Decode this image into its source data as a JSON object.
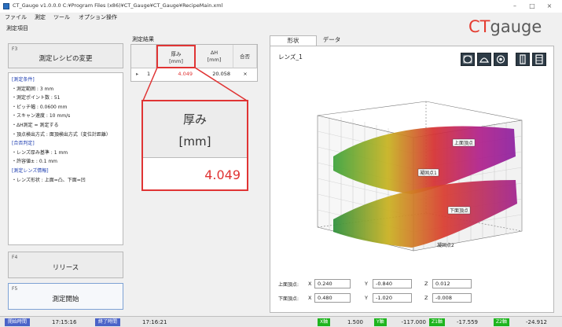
{
  "window": {
    "title": "CT_Gauge v1.0.0.0   C:¥Program Files (x86)¥CT_Gauge¥CT_Gauge¥RecipeMain.xml",
    "minimize": "–",
    "maximize": "□",
    "close": "×"
  },
  "menu": [
    "ファイル",
    "測定",
    "ツール",
    "オプション操作"
  ],
  "logo": {
    "ct": "CT",
    "gauge": "gauge"
  },
  "left": {
    "caption": "測定項目",
    "f3_key": "F3",
    "f3_label": "測定レシピの変更",
    "conditions": [
      {
        "text": "[測定条件]",
        "head": true
      },
      {
        "text": "・測定範囲 : 3 mm",
        "head": false
      },
      {
        "text": "・測定ポイント数 : 51",
        "head": false
      },
      {
        "text": "・ピッチ幅 : 0.0600 mm",
        "head": false
      },
      {
        "text": "・スキャン速度 : 10 mm/s",
        "head": false
      },
      {
        "text": "・ΔH測定 = 測定する",
        "head": false
      },
      {
        "text": "・頂点検出方式 : 面頂検出方式（変位計距離）",
        "head": false
      },
      {
        "text": "",
        "head": false
      },
      {
        "text": "[合否判定]",
        "head": true
      },
      {
        "text": "・レンズ厚み基準 : 1 mm",
        "head": false
      },
      {
        "text": "・許容値± : 0.1 mm",
        "head": false
      },
      {
        "text": "",
        "head": false
      },
      {
        "text": "[測定レンズ情報]",
        "head": true
      },
      {
        "text": "・レンズ形状 : 上面=凸、下面=凹",
        "head": false
      }
    ],
    "f4_key": "F4",
    "f4_label": "リリース",
    "f5_key": "F5",
    "f5_label": "測定開始"
  },
  "results": {
    "caption": "測定結果",
    "columns": [
      {
        "l1": "厚み",
        "l2": "[mm]"
      },
      {
        "l1": "ΔH",
        "l2": "[mm]"
      },
      {
        "l1": "合否",
        "l2": ""
      }
    ],
    "rows": [
      {
        "marker": "▸",
        "index": "1",
        "thickness": "4.049",
        "dh": "20.058",
        "pass": "×"
      }
    ],
    "zoom": {
      "l1": "厚み",
      "l2": "[mm]",
      "value": "4.049"
    }
  },
  "tabs": {
    "shape": "形状",
    "data": "データ"
  },
  "chart": {
    "name": "レンズ_1",
    "view_buttons": [
      "view-3d-icon",
      "view-top-icon",
      "view-front-icon",
      "view-side-icon",
      "view-grid-icon"
    ],
    "labels": {
      "top_surface": "上面頂点",
      "bottom_surface": "下面頂点",
      "center_top": "凝固点1",
      "center_bottom": "凝固点2"
    },
    "coords": {
      "top_label": "上面頂点:",
      "bottom_label": "下面頂点:",
      "x_axis": "X",
      "y_axis": "Y",
      "z_axis": "Z",
      "top": {
        "x": "0.240",
        "y": "-0.840",
        "z": "0.012"
      },
      "bottom": {
        "x": "0.480",
        "y": "-1.020",
        "z": "-0.008"
      }
    }
  },
  "status": {
    "start_label": "開始時間",
    "start_time": "17:15:16",
    "end_label": "終了時間",
    "end_time": "17:16:21",
    "x_label": "X軸",
    "x_value": "1.500",
    "y_label": "Y軸",
    "y_value": "-117.000",
    "z1_label": "Z1軸",
    "z1_value": "-17.559",
    "z2_label": "Z2軸",
    "z2_value": "-24.912"
  },
  "colors": {
    "accent_red": "#e03434",
    "status_blue": "#4a63c8",
    "status_green": "#1eb51e",
    "logo_red": "#e43b2f"
  }
}
